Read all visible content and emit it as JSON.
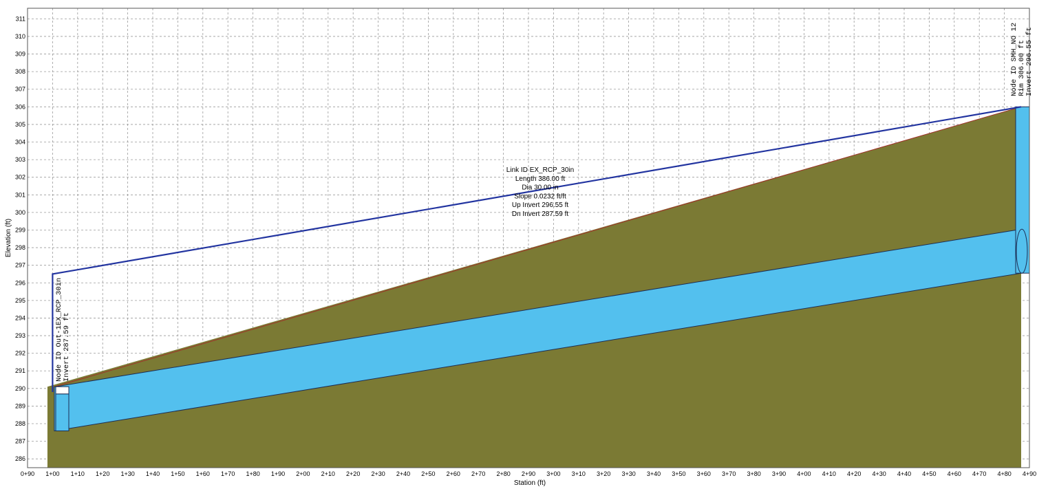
{
  "chart_data": {
    "type": "profile",
    "title": "",
    "xlabel": "Station (ft)",
    "ylabel": "Elevation (ft)",
    "xlim": [
      90,
      490
    ],
    "ylim": [
      286,
      311
    ],
    "grid": true,
    "x_ticks": [
      "0+90",
      "1+00",
      "1+10",
      "1+20",
      "1+30",
      "1+40",
      "1+50",
      "1+60",
      "1+70",
      "1+80",
      "1+90",
      "2+00",
      "2+10",
      "2+20",
      "2+30",
      "2+40",
      "2+50",
      "2+60",
      "2+70",
      "2+80",
      "2+90",
      "3+00",
      "3+10",
      "3+20",
      "3+30",
      "3+40",
      "3+50",
      "3+60",
      "3+70",
      "3+80",
      "3+90",
      "4+00",
      "4+10",
      "4+20",
      "4+30",
      "4+40",
      "4+50",
      "4+60",
      "4+70",
      "4+80",
      "4+90"
    ],
    "y_ticks": [
      "286",
      "287",
      "288",
      "289",
      "290",
      "291",
      "292",
      "293",
      "294",
      "295",
      "296",
      "297",
      "298",
      "299",
      "300",
      "301",
      "302",
      "303",
      "304",
      "305",
      "306",
      "307",
      "308",
      "309",
      "310",
      "311"
    ],
    "ground_profile": [
      {
        "station": 100.7,
        "elevation": 290.1
      },
      {
        "station": 486.7,
        "elevation": 306.0
      }
    ],
    "pipe": {
      "up_station": 486.7,
      "dn_station": 100.7,
      "up_invert": 296.55,
      "dn_invert": 287.59,
      "diameter_ft": 2.5
    },
    "hgl_profile": [
      {
        "station": 100.0,
        "elevation": 289.8
      },
      {
        "station": 100.0,
        "elevation": 296.5
      },
      {
        "station": 486.7,
        "elevation": 306.0
      }
    ],
    "nodes": [
      {
        "id": "Out-1EX_RCP_30in",
        "station": 100.0,
        "rim": 290.1,
        "invert": 287.59,
        "labels": [
          "Node ID Out-1EX_RCP_30in",
          "Invert 287.59 ft"
        ]
      },
      {
        "id": "SMH_NO_12",
        "station": 486.7,
        "rim": 306.0,
        "invert": 296.55,
        "labels": [
          "Node ID SMH_NO 12",
          "Rim 306.00 ft",
          "Invert 296.55 ft"
        ]
      }
    ],
    "link_label": [
      "Link ID EX_RCP_30in",
      "Length 386.00 ft",
      "Dia 30.00 in",
      "Slope 0.0232 ft/ft",
      "Up Invert 296.55 ft",
      "Dn Invert 287.59 ft"
    ],
    "colors": {
      "ground": "#7b7a34",
      "pipe": "#53c0ee",
      "hgl": "#2234a0",
      "grid": "#9a9a9a",
      "ground_line": "#a0302a"
    }
  }
}
